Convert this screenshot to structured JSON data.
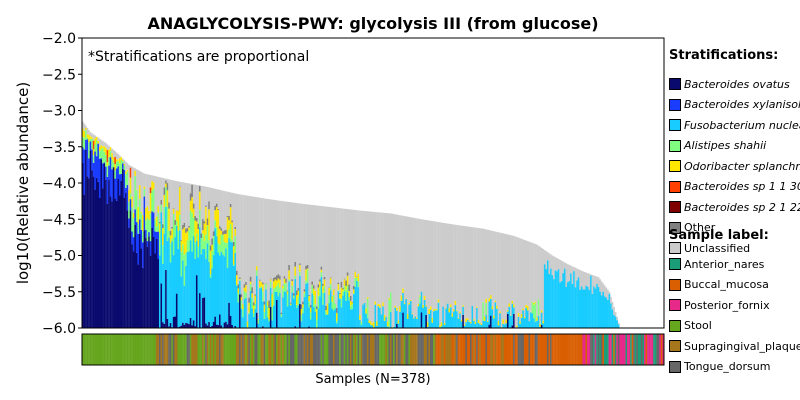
{
  "chart_data": {
    "type": "bar",
    "title": "ANAGLYCOLYSIS-PWY: glycolysis III (from glucose)",
    "ylabel": "log10(Relative abundance)",
    "xlabel": "Samples (N=378)",
    "ylim": [
      -6.0,
      -2.0
    ],
    "yticks": [
      "−2.0",
      "−2.5",
      "−3.0",
      "−3.5",
      "−4.0",
      "−4.5",
      "−5.0",
      "−5.5",
      "−6.0"
    ],
    "annotation": "*Stratifications are proportional",
    "n_samples": 378,
    "stacked": true,
    "total_profile": [
      {
        "rank": 0,
        "value": -3.15
      },
      {
        "rank": 5,
        "value": -3.3
      },
      {
        "rank": 15,
        "value": -3.45
      },
      {
        "rank": 23,
        "value": -3.6
      },
      {
        "rank": 30,
        "value": -3.75
      },
      {
        "rank": 40,
        "value": -3.87
      },
      {
        "rank": 60,
        "value": -3.97
      },
      {
        "rank": 80,
        "value": -4.05
      },
      {
        "rank": 100,
        "value": -4.15
      },
      {
        "rank": 120,
        "value": -4.22
      },
      {
        "rank": 140,
        "value": -4.28
      },
      {
        "rank": 160,
        "value": -4.33
      },
      {
        "rank": 180,
        "value": -4.38
      },
      {
        "rank": 200,
        "value": -4.42
      },
      {
        "rank": 220,
        "value": -4.5
      },
      {
        "rank": 240,
        "value": -4.57
      },
      {
        "rank": 260,
        "value": -4.63
      },
      {
        "rank": 280,
        "value": -4.73
      },
      {
        "rank": 295,
        "value": -4.85
      },
      {
        "rank": 305,
        "value": -5.0
      },
      {
        "rank": 315,
        "value": -5.12
      },
      {
        "rank": 325,
        "value": -5.22
      },
      {
        "rank": 335,
        "value": -5.3
      },
      {
        "rank": 342,
        "value": -5.5
      },
      {
        "rank": 347,
        "value": -5.85
      },
      {
        "rank": 349,
        "value": -6.0
      },
      {
        "rank": 377,
        "value": -6.0
      }
    ],
    "stratifications_title": "Stratifications:",
    "stratifications": [
      {
        "name": "Bacteroides ovatus",
        "color": "#0a0a6e",
        "italic": true
      },
      {
        "name": "Bacteroides xylanisolvens",
        "color": "#1a3cff",
        "italic": true
      },
      {
        "name": "Fusobacterium nucleatum",
        "color": "#18ccff",
        "italic": true
      },
      {
        "name": "Alistipes shahii",
        "color": "#80ff80",
        "italic": true
      },
      {
        "name": "Odoribacter splanchnicus",
        "color": "#ffe600",
        "italic": true
      },
      {
        "name": "Bacteroides sp 1 1 30",
        "color": "#ff4000",
        "italic": true
      },
      {
        "name": "Bacteroides sp 2 1 22",
        "color": "#7f0000",
        "italic": true
      },
      {
        "name": "Other",
        "color": "#808080",
        "italic": false
      },
      {
        "name": "Unclassified",
        "color": "#cccccc",
        "italic": false
      }
    ],
    "sample_label_title": "Sample label:",
    "sample_labels": [
      {
        "name": "Anterior_nares",
        "color": "#1b9e77"
      },
      {
        "name": "Buccal_mucosa",
        "color": "#d95f02"
      },
      {
        "name": "Posterior_fornix",
        "color": "#e7298a"
      },
      {
        "name": "Stool",
        "color": "#66a61e"
      },
      {
        "name": "Supragingival_plaque",
        "color": "#a6761d"
      },
      {
        "name": "Tongue_dorsum",
        "color": "#666666"
      }
    ]
  }
}
